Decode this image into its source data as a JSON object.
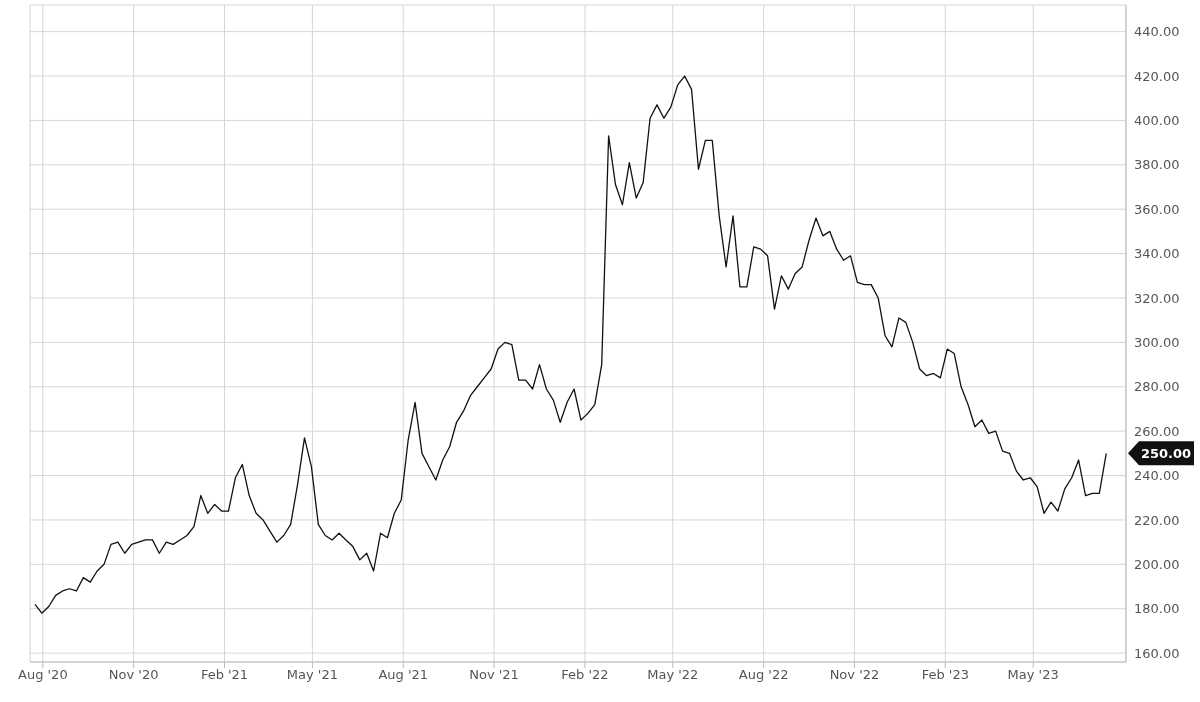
{
  "chart_data": {
    "type": "line",
    "color": "#111111",
    "marker": "none",
    "line_style": "solid",
    "grid": true,
    "x": [
      "2020-07-24",
      "2020-07-31",
      "2020-08-07",
      "2020-08-14",
      "2020-08-21",
      "2020-08-28",
      "2020-09-04",
      "2020-09-11",
      "2020-09-18",
      "2020-09-25",
      "2020-10-02",
      "2020-10-09",
      "2020-10-16",
      "2020-10-23",
      "2020-10-30",
      "2020-11-06",
      "2020-11-13",
      "2020-11-20",
      "2020-11-27",
      "2020-12-04",
      "2020-12-11",
      "2020-12-18",
      "2020-12-25",
      "2021-01-01",
      "2021-01-08",
      "2021-01-15",
      "2021-01-22",
      "2021-01-29",
      "2021-02-05",
      "2021-02-12",
      "2021-02-19",
      "2021-02-26",
      "2021-03-05",
      "2021-03-12",
      "2021-03-19",
      "2021-03-26",
      "2021-04-02",
      "2021-04-09",
      "2021-04-16",
      "2021-04-23",
      "2021-04-30",
      "2021-05-07",
      "2021-05-14",
      "2021-05-21",
      "2021-05-28",
      "2021-06-04",
      "2021-06-11",
      "2021-06-18",
      "2021-06-25",
      "2021-07-02",
      "2021-07-09",
      "2021-07-16",
      "2021-07-23",
      "2021-07-30",
      "2021-08-06",
      "2021-08-13",
      "2021-08-20",
      "2021-08-27",
      "2021-09-03",
      "2021-09-10",
      "2021-09-17",
      "2021-09-24",
      "2021-10-01",
      "2021-10-08",
      "2021-10-15",
      "2021-10-22",
      "2021-10-29",
      "2021-11-05",
      "2021-11-12",
      "2021-11-19",
      "2021-11-26",
      "2021-12-03",
      "2021-12-10",
      "2021-12-17",
      "2021-12-24",
      "2021-12-31",
      "2022-01-07",
      "2022-01-14",
      "2022-01-21",
      "2022-01-28",
      "2022-02-04",
      "2022-02-11",
      "2022-02-18",
      "2022-02-25",
      "2022-03-04",
      "2022-03-11",
      "2022-03-18",
      "2022-03-25",
      "2022-04-01",
      "2022-04-08",
      "2022-04-15",
      "2022-04-22",
      "2022-04-29",
      "2022-05-06",
      "2022-05-13",
      "2022-05-20",
      "2022-05-27",
      "2022-06-03",
      "2022-06-10",
      "2022-06-17",
      "2022-06-24",
      "2022-07-01",
      "2022-07-08",
      "2022-07-15",
      "2022-07-22",
      "2022-07-29",
      "2022-08-05",
      "2022-08-12",
      "2022-08-19",
      "2022-08-26",
      "2022-09-02",
      "2022-09-09",
      "2022-09-16",
      "2022-09-23",
      "2022-09-30",
      "2022-10-07",
      "2022-10-14",
      "2022-10-21",
      "2022-10-28",
      "2022-11-04",
      "2022-11-11",
      "2022-11-18",
      "2022-11-25",
      "2022-12-02",
      "2022-12-09",
      "2022-12-16",
      "2022-12-23",
      "2022-12-30",
      "2023-01-06",
      "2023-01-13",
      "2023-01-20",
      "2023-01-27",
      "2023-02-03",
      "2023-02-10",
      "2023-02-17",
      "2023-02-24",
      "2023-03-03",
      "2023-03-10",
      "2023-03-17",
      "2023-03-24",
      "2023-03-31",
      "2023-04-07",
      "2023-04-14",
      "2023-04-21",
      "2023-04-28",
      "2023-05-05",
      "2023-05-12",
      "2023-05-19",
      "2023-05-26",
      "2023-06-02",
      "2023-06-09",
      "2023-06-16",
      "2023-06-23",
      "2023-06-30",
      "2023-07-07",
      "2023-07-14"
    ],
    "values": [
      182,
      178,
      181,
      186,
      188,
      189,
      188,
      194,
      192,
      197,
      200,
      209,
      210,
      205,
      209,
      210,
      211,
      211,
      205,
      210,
      209,
      211,
      213,
      217,
      231,
      223,
      227,
      224,
      224,
      239,
      245,
      231,
      223,
      220,
      215,
      210,
      213,
      218,
      236,
      257,
      244,
      218,
      213,
      211,
      214,
      211,
      208,
      202,
      205,
      197,
      214,
      212,
      223,
      229,
      256,
      273,
      250,
      244,
      238,
      247,
      253,
      264,
      269,
      276,
      280,
      284,
      288,
      297,
      300,
      299,
      283,
      283,
      279,
      290,
      279,
      274,
      264,
      273,
      279,
      265,
      268,
      272,
      290,
      393,
      371,
      362,
      381,
      365,
      372,
      401,
      407,
      401,
      406,
      416,
      420,
      414,
      378,
      391,
      391,
      357,
      334,
      357,
      325,
      325,
      343,
      342,
      339,
      315,
      330,
      324,
      331,
      334,
      346,
      356,
      348,
      350,
      342,
      337,
      339,
      327,
      326,
      326,
      320,
      303,
      298,
      311,
      309,
      300,
      288,
      285,
      286,
      284,
      297,
      295,
      280,
      272,
      262,
      265,
      259,
      260,
      251,
      250,
      242,
      238,
      239,
      235,
      223,
      228,
      224,
      234,
      239,
      247,
      231,
      232,
      232,
      250
    ],
    "xlim": [
      "2020-07-19",
      "2023-08-03"
    ],
    "xticks": [
      {
        "value": "2020-08-01",
        "label": "Aug '20"
      },
      {
        "value": "2020-11-01",
        "label": "Nov '20"
      },
      {
        "value": "2021-02-01",
        "label": "Feb '21"
      },
      {
        "value": "2021-05-01",
        "label": "May '21"
      },
      {
        "value": "2021-08-01",
        "label": "Aug '21"
      },
      {
        "value": "2021-11-01",
        "label": "Nov '21"
      },
      {
        "value": "2022-02-01",
        "label": "Feb '22"
      },
      {
        "value": "2022-05-01",
        "label": "May '22"
      },
      {
        "value": "2022-08-01",
        "label": "Aug '22"
      },
      {
        "value": "2022-11-01",
        "label": "Nov '22"
      },
      {
        "value": "2023-02-01",
        "label": "Feb '23"
      },
      {
        "value": "2023-05-01",
        "label": "May '23"
      }
    ],
    "ylim": [
      156,
      452
    ],
    "yticks": [
      {
        "value": 160,
        "label": "160.00"
      },
      {
        "value": 180,
        "label": "180.00"
      },
      {
        "value": 200,
        "label": "200.00"
      },
      {
        "value": 220,
        "label": "220.00"
      },
      {
        "value": 240,
        "label": "240.00"
      },
      {
        "value": 260,
        "label": "260.00"
      },
      {
        "value": 280,
        "label": "280.00"
      },
      {
        "value": 300,
        "label": "300.00"
      },
      {
        "value": 320,
        "label": "320.00"
      },
      {
        "value": 340,
        "label": "340.00"
      },
      {
        "value": 360,
        "label": "360.00"
      },
      {
        "value": 380,
        "label": "380.00"
      },
      {
        "value": 400,
        "label": "400.00"
      },
      {
        "value": 420,
        "label": "420.00"
      },
      {
        "value": 440,
        "label": "440.00"
      }
    ],
    "annotations": [
      {
        "text": "250.00",
        "x": "2023-07-14",
        "y": 250
      }
    ]
  }
}
